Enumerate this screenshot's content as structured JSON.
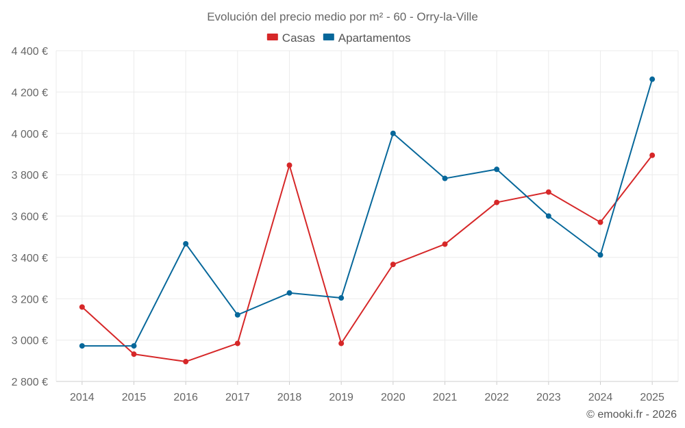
{
  "chart_data": {
    "type": "line",
    "title": "Evolución del precio medio por m² - 60 - Orry-la-Ville",
    "xlabel": "",
    "ylabel": "",
    "categories": [
      "2014",
      "2015",
      "2016",
      "2017",
      "2018",
      "2019",
      "2020",
      "2021",
      "2022",
      "2023",
      "2024",
      "2025"
    ],
    "ylim": [
      2800,
      4400
    ],
    "yticks": [
      2800,
      3000,
      3200,
      3400,
      3600,
      3800,
      4000,
      4200,
      4400
    ],
    "ytick_labels": [
      "2 800 €",
      "3 000 €",
      "3 200 €",
      "3 400 €",
      "3 600 €",
      "3 800 €",
      "4 000 €",
      "4 200 €",
      "4 400 €"
    ],
    "grid": true,
    "legend_position": "top-center",
    "series": [
      {
        "name": "Casas",
        "color": "#d62728",
        "values": [
          3160,
          2932,
          2896,
          2984,
          3846,
          2984,
          3366,
          3464,
          3666,
          3716,
          3570,
          3894
        ]
      },
      {
        "name": "Apartamentos",
        "color": "#06679a",
        "values": [
          2972,
          2972,
          3466,
          3122,
          3228,
          3204,
          4000,
          3782,
          3826,
          3600,
          3412,
          4262
        ]
      }
    ]
  },
  "credit": "© emooki.fr - 2026"
}
